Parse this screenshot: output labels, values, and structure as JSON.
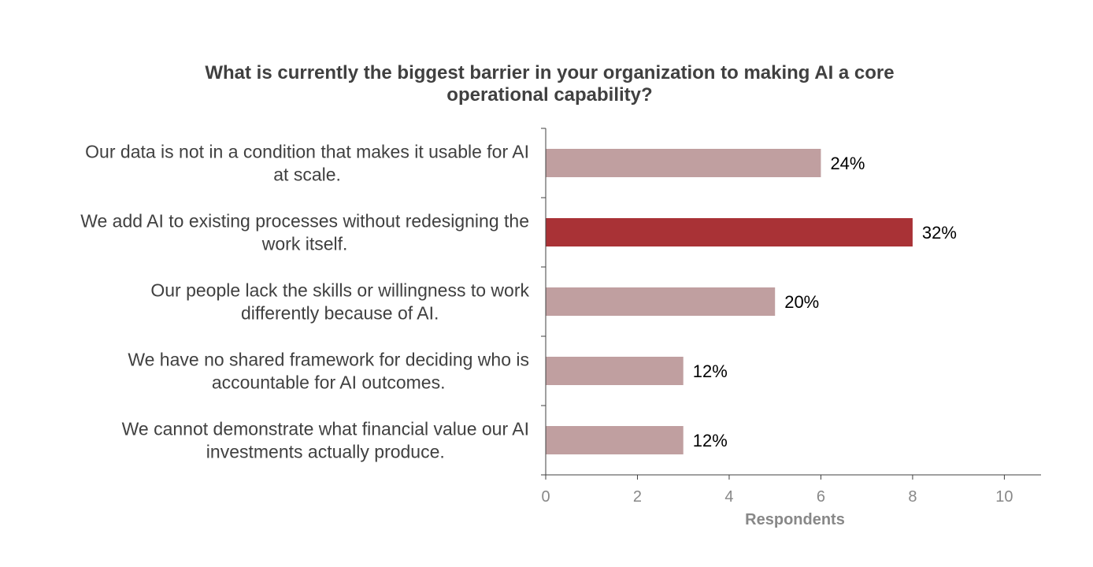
{
  "chart_data": {
    "type": "bar",
    "orientation": "horizontal",
    "title_lines": [
      "What is currently the biggest barrier in your organization to making AI a core",
      "operational capability?"
    ],
    "categories": [
      [
        "Our data is not in a condition that makes it usable for AI",
        "at scale."
      ],
      [
        "We add AI to existing processes without redesigning the",
        "work itself."
      ],
      [
        "Our people lack the skills or willingness to work",
        "differently because of AI."
      ],
      [
        "We have no shared framework for deciding who is",
        "accountable for AI outcomes."
      ],
      [
        "We cannot demonstrate what financial value our AI",
        "investments actually produce."
      ]
    ],
    "values": [
      6,
      8,
      5,
      3,
      3
    ],
    "data_labels": [
      "24%",
      "32%",
      "20%",
      "12%",
      "12%"
    ],
    "highlight_index": 1,
    "colors": {
      "bar": "#c09fa0",
      "highlight": "#a93236",
      "axis": "#404040",
      "tick_label": "#888888",
      "category_label": "#404040",
      "data_label": "#000000"
    },
    "xlabel": "Respondents",
    "xlim": [
      0,
      10.8
    ],
    "xticks": [
      0,
      2,
      4,
      6,
      8,
      10
    ],
    "grid": false,
    "legend": "none"
  }
}
